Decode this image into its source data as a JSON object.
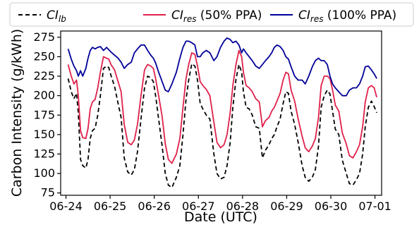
{
  "chart_data": {
    "type": "line",
    "xlabel": "Date (UTC)",
    "ylabel": "Carbon Intensity (g/kWh)",
    "x_ticks": [
      "06-24",
      "06-25",
      "06-26",
      "06-27",
      "06-28",
      "06-29",
      "06-30",
      "07-01"
    ],
    "y_ticks": [
      75,
      100,
      125,
      150,
      175,
      200,
      225,
      250,
      275
    ],
    "xlim": [
      -0.12,
      7.15
    ],
    "ylim": [
      72,
      283
    ],
    "grid": false,
    "legend_position": "top (outside, above plot)",
    "x_unit": "days since 06-24 00:00 UTC",
    "series": [
      {
        "name": "CI_lb",
        "legend_main": "CI",
        "legend_sub": "lb",
        "legend_suffix": "",
        "color": "#000000",
        "dash": "6,4",
        "x": [
          0.05,
          0.12,
          0.18,
          0.24,
          0.28,
          0.33,
          0.38,
          0.45,
          0.5,
          0.55,
          0.6,
          0.66,
          0.72,
          0.78,
          0.85,
          0.92,
          0.97,
          1.02,
          1.1,
          1.18,
          1.25,
          1.32,
          1.4,
          1.48,
          1.55,
          1.62,
          1.7,
          1.78,
          1.85,
          1.92,
          1.98,
          2.03,
          2.1,
          2.18,
          2.25,
          2.32,
          2.4,
          2.5,
          2.58,
          2.65,
          2.72,
          2.78,
          2.85,
          2.92,
          2.98,
          3.04,
          3.1,
          3.18,
          3.26,
          3.35,
          3.42,
          3.5,
          3.58,
          3.65,
          3.72,
          3.78,
          3.85,
          3.92,
          3.98,
          4.02,
          4.08,
          4.15,
          4.22,
          4.3,
          4.38,
          4.45,
          4.52,
          4.6,
          4.66,
          4.72,
          4.78,
          4.85,
          4.92,
          4.98,
          5.04,
          5.1,
          5.18,
          5.26,
          5.35,
          5.42,
          5.5,
          5.58,
          5.65,
          5.72,
          5.78,
          5.85,
          5.92,
          5.98,
          6.04,
          6.1,
          6.18,
          6.26,
          6.35,
          6.42,
          6.5,
          6.58,
          6.65,
          6.72,
          6.78,
          6.85,
          6.92,
          6.98,
          7.04
        ],
        "values": [
          222,
          205,
          196,
          203,
          178,
          118,
          110,
          107,
          118,
          145,
          155,
          158,
          175,
          200,
          235,
          238,
          236,
          226,
          212,
          190,
          172,
          120,
          102,
          98,
          105,
          128,
          170,
          210,
          225,
          223,
          218,
          200,
          170,
          135,
          100,
          85,
          82,
          95,
          110,
          150,
          195,
          220,
          241,
          238,
          220,
          190,
          183,
          175,
          170,
          125,
          100,
          93,
          95,
          110,
          140,
          185,
          221,
          240,
          230,
          205,
          185,
          183,
          175,
          160,
          158,
          120,
          130,
          137,
          145,
          150,
          160,
          170,
          190,
          205,
          203,
          180,
          163,
          140,
          110,
          95,
          90,
          95,
          105,
          135,
          185,
          200,
          207,
          202,
          180,
          157,
          150,
          117,
          100,
          87,
          85,
          92,
          100,
          125,
          160,
          185,
          193,
          186,
          178
        ]
      },
      {
        "name": "CI_res (50% PPA)",
        "legend_main": "CI",
        "legend_sub": "res",
        "legend_suffix": " (50% PPA)",
        "color": "#e0204a",
        "dash": "",
        "x": [
          0.05,
          0.12,
          0.18,
          0.24,
          0.28,
          0.33,
          0.38,
          0.45,
          0.5,
          0.55,
          0.6,
          0.66,
          0.72,
          0.78,
          0.85,
          0.92,
          0.97,
          1.02,
          1.1,
          1.18,
          1.25,
          1.32,
          1.4,
          1.48,
          1.55,
          1.62,
          1.7,
          1.78,
          1.85,
          1.92,
          1.98,
          2.03,
          2.1,
          2.18,
          2.25,
          2.32,
          2.4,
          2.5,
          2.58,
          2.65,
          2.72,
          2.78,
          2.85,
          2.92,
          2.98,
          3.04,
          3.1,
          3.18,
          3.26,
          3.35,
          3.42,
          3.5,
          3.58,
          3.65,
          3.72,
          3.78,
          3.85,
          3.92,
          3.98,
          4.02,
          4.08,
          4.15,
          4.22,
          4.3,
          4.38,
          4.45,
          4.52,
          4.6,
          4.66,
          4.72,
          4.78,
          4.85,
          4.92,
          4.98,
          5.04,
          5.1,
          5.18,
          5.26,
          5.35,
          5.42,
          5.5,
          5.58,
          5.65,
          5.72,
          5.78,
          5.85,
          5.92,
          5.98,
          6.04,
          6.1,
          6.18,
          6.26,
          6.35,
          6.42,
          6.5,
          6.58,
          6.65,
          6.72,
          6.78,
          6.85,
          6.92,
          6.98,
          7.04
        ],
        "values": [
          240,
          225,
          215,
          220,
          200,
          155,
          146,
          145,
          158,
          183,
          192,
          195,
          210,
          230,
          250,
          248,
          247,
          240,
          233,
          218,
          205,
          163,
          140,
          137,
          143,
          163,
          200,
          233,
          240,
          238,
          235,
          222,
          200,
          173,
          138,
          118,
          113,
          125,
          145,
          185,
          222,
          240,
          255,
          253,
          238,
          218,
          213,
          208,
          200,
          166,
          140,
          133,
          137,
          150,
          178,
          213,
          240,
          258,
          250,
          230,
          213,
          210,
          205,
          196,
          192,
          160,
          168,
          172,
          180,
          185,
          193,
          203,
          220,
          230,
          228,
          207,
          193,
          170,
          148,
          133,
          128,
          135,
          145,
          172,
          213,
          225,
          225,
          222,
          207,
          188,
          180,
          152,
          138,
          123,
          120,
          128,
          137,
          160,
          192,
          210,
          213,
          210,
          198
        ]
      },
      {
        "name": "CI_res (100% PPA)",
        "legend_main": "CI",
        "legend_sub": "res",
        "legend_suffix": " (100% PPA)",
        "color": "#000099",
        "dash": "",
        "x": [
          0.05,
          0.12,
          0.18,
          0.24,
          0.28,
          0.33,
          0.38,
          0.45,
          0.5,
          0.55,
          0.6,
          0.66,
          0.72,
          0.78,
          0.85,
          0.92,
          0.97,
          1.02,
          1.1,
          1.18,
          1.25,
          1.32,
          1.4,
          1.48,
          1.55,
          1.62,
          1.7,
          1.78,
          1.85,
          1.92,
          1.98,
          2.03,
          2.1,
          2.18,
          2.25,
          2.32,
          2.4,
          2.5,
          2.58,
          2.65,
          2.72,
          2.78,
          2.85,
          2.92,
          2.98,
          3.04,
          3.1,
          3.18,
          3.26,
          3.35,
          3.42,
          3.5,
          3.58,
          3.65,
          3.72,
          3.78,
          3.85,
          3.92,
          3.98,
          4.02,
          4.08,
          4.15,
          4.22,
          4.3,
          4.38,
          4.45,
          4.52,
          4.6,
          4.66,
          4.72,
          4.78,
          4.85,
          4.92,
          4.98,
          5.04,
          5.1,
          5.18,
          5.26,
          5.35,
          5.42,
          5.5,
          5.58,
          5.65,
          5.72,
          5.78,
          5.85,
          5.92,
          5.98,
          6.04,
          6.1,
          6.18,
          6.26,
          6.35,
          6.42,
          6.5,
          6.58,
          6.65,
          6.72,
          6.78,
          6.85,
          6.92,
          6.98,
          7.04
        ],
        "values": [
          260,
          247,
          238,
          232,
          225,
          232,
          225,
          235,
          248,
          258,
          262,
          260,
          262,
          263,
          258,
          262,
          259,
          256,
          252,
          248,
          243,
          235,
          240,
          243,
          255,
          260,
          265,
          265,
          258,
          252,
          248,
          242,
          230,
          218,
          207,
          205,
          215,
          230,
          248,
          262,
          270,
          270,
          268,
          265,
          250,
          250,
          255,
          258,
          255,
          245,
          250,
          262,
          270,
          274,
          272,
          268,
          270,
          265,
          255,
          260,
          255,
          250,
          245,
          238,
          235,
          240,
          245,
          250,
          255,
          262,
          265,
          263,
          258,
          250,
          247,
          237,
          225,
          220,
          220,
          215,
          225,
          237,
          245,
          248,
          245,
          245,
          240,
          225,
          215,
          210,
          205,
          200,
          200,
          207,
          210,
          210,
          215,
          225,
          237,
          238,
          233,
          228,
          222
        ]
      }
    ]
  }
}
